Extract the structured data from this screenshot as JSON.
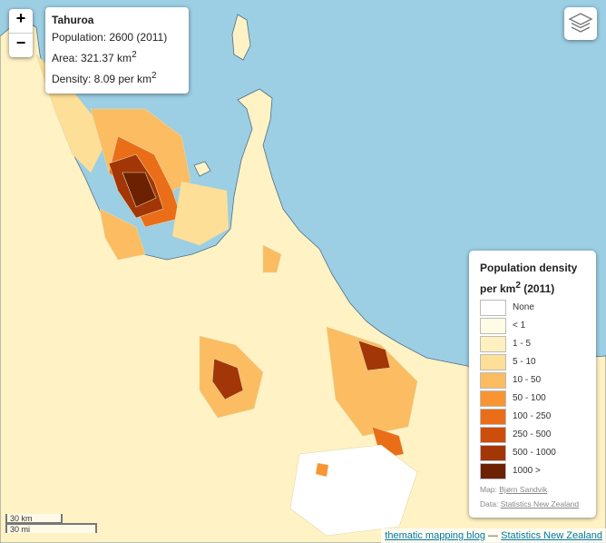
{
  "map": {
    "water_color": "#9ccee4",
    "land_color": "#fff9d6",
    "boundary_color": "#e3d9a6",
    "coast_color": "#4f6f86"
  },
  "zoom": {
    "in_label": "+",
    "out_label": "−"
  },
  "info": {
    "name": "Tahuroa",
    "population": "Population: 2600 (2011)",
    "area": "Area: 321.37 km",
    "area_sup": "2",
    "density": "Density: 8.09 per km",
    "density_sup": "2"
  },
  "layers": {
    "icon": "layers-icon"
  },
  "legend": {
    "title_line1": "Population density",
    "title_line2_pre": "per km",
    "title_sup": "2",
    "title_line2_post": " (2011)",
    "items": [
      {
        "label": "None",
        "color": "#ffffff"
      },
      {
        "label": "< 1",
        "color": "#fffbe4"
      },
      {
        "label": "1 - 5",
        "color": "#fff0c0"
      },
      {
        "label": "5 - 10",
        "color": "#fddf98"
      },
      {
        "label": "10 - 50",
        "color": "#fbbc62"
      },
      {
        "label": "50 - 100",
        "color": "#f89532"
      },
      {
        "label": "100 - 250",
        "color": "#ea6d18"
      },
      {
        "label": "250 - 500",
        "color": "#cd4d0b"
      },
      {
        "label": "500 - 1000",
        "color": "#a33606"
      },
      {
        "label": "1000 >",
        "color": "#6b2102"
      }
    ],
    "credit_map_pre": "Map: ",
    "credit_map_link": "Bjørn Sandvik",
    "credit_data_pre": "Data: ",
    "credit_data_link": "Statistics New Zealand"
  },
  "scale": {
    "km": "30 km",
    "mi": "30 mi"
  },
  "attribution": {
    "link1": "thematic mapping blog",
    "separator": " — ",
    "link2": "Statistics New Zealand"
  }
}
